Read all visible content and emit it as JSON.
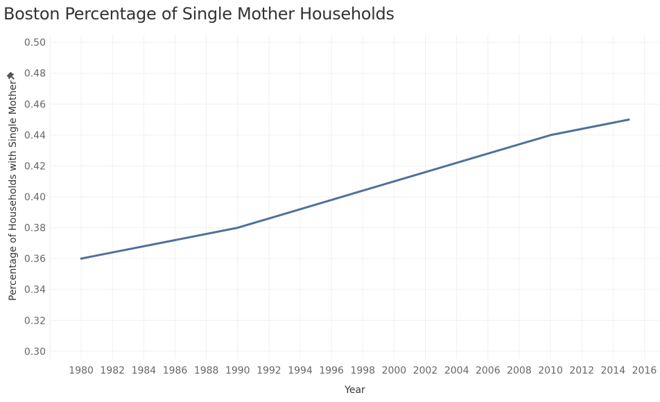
{
  "chart_data": {
    "type": "line",
    "title": "Boston Percentage of Single Mother Households",
    "xlabel": "Year",
    "ylabel": "Percentage of Households with Single Mother",
    "xlim": [
      1978,
      2017
    ],
    "ylim": [
      0.295,
      0.505
    ],
    "x_ticks": [
      1980,
      1982,
      1984,
      1986,
      1988,
      1990,
      1992,
      1994,
      1996,
      1998,
      2000,
      2002,
      2004,
      2006,
      2008,
      2010,
      2012,
      2014,
      2016
    ],
    "y_ticks": [
      "0.30",
      "0.32",
      "0.34",
      "0.36",
      "0.38",
      "0.40",
      "0.42",
      "0.44",
      "0.46",
      "0.48",
      "0.50"
    ],
    "grid": true,
    "series": [
      {
        "color": "#4e7198",
        "x": [
          1980,
          1990,
          2000,
          2010,
          2015
        ],
        "y": [
          0.36,
          0.38,
          0.41,
          0.44,
          0.45
        ]
      }
    ],
    "ylabel_icon": "pin-icon"
  }
}
